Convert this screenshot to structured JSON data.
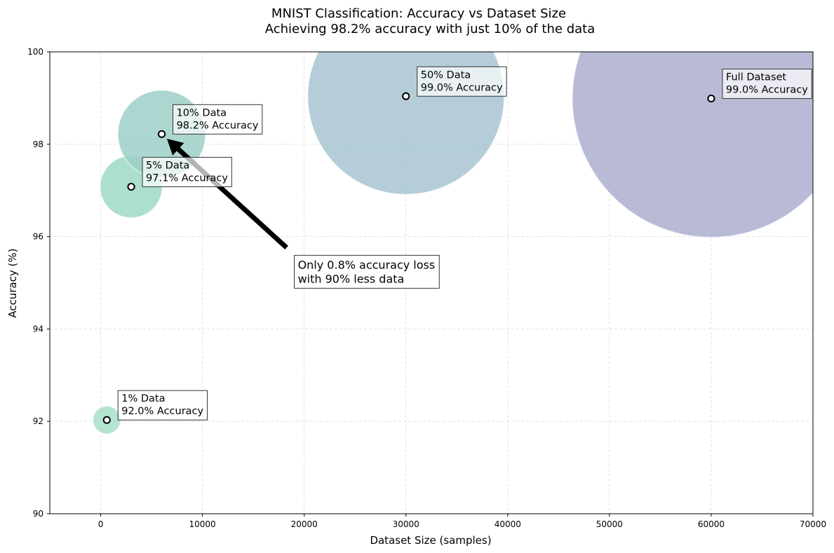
{
  "chart_data": {
    "type": "scatter",
    "title": "MNIST Classification: Accuracy vs Dataset Size",
    "subtitle": "Achieving 98.2% accuracy with just 10% of the data",
    "xlabel": "Dataset Size (samples)",
    "ylabel": "Accuracy (%)",
    "xlim": [
      -5000,
      70000
    ],
    "ylim": [
      90,
      100
    ],
    "xticks": [
      0,
      10000,
      20000,
      30000,
      40000,
      50000,
      60000,
      70000
    ],
    "yticks": [
      90,
      92,
      94,
      96,
      98,
      100
    ],
    "grid": true,
    "points": [
      {
        "x": 600,
        "y": 92.03,
        "line1": "1% Data",
        "line2": "92.0% Accuracy",
        "color": "#a8dfc9"
      },
      {
        "x": 3000,
        "y": 97.08,
        "line1": "5% Data",
        "line2": "97.1% Accuracy",
        "color": "#9dd9c4"
      },
      {
        "x": 6000,
        "y": 98.22,
        "line1": "10% Data",
        "line2": "98.2% Accuracy",
        "color": "#9dcfc8"
      },
      {
        "x": 30000,
        "y": 99.04,
        "line1": "50% Data",
        "line2": "99.0% Accuracy",
        "color": "#a7c4d1"
      },
      {
        "x": 60000,
        "y": 98.99,
        "line1": "Full Dataset",
        "line2": "99.0% Accuracy",
        "color": "#adafcf"
      }
    ],
    "callout": {
      "line1": "Only 0.8% accuracy loss",
      "line2": "with 90% less data",
      "points_to": {
        "x": 6000,
        "y": 98.22
      }
    }
  }
}
